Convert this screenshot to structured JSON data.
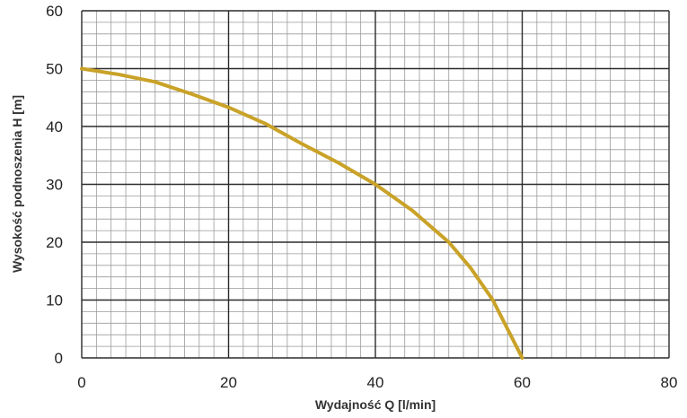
{
  "chart_data": {
    "type": "line",
    "title": "",
    "xlabel": "Wydajność Q [l/min]",
    "ylabel": "Wysokość podnoszenia H [m]",
    "xlim": [
      0,
      80
    ],
    "ylim": [
      0,
      60
    ],
    "x_ticks": [
      "0",
      "20",
      "40",
      "60",
      "80"
    ],
    "y_ticks": [
      "0",
      "10",
      "20",
      "30",
      "40",
      "50",
      "60"
    ],
    "grid": true,
    "legend": "none",
    "colors": {
      "line": "#C9A227",
      "major_grid": "#2b2b2b",
      "minor_grid": "#9a9a9a"
    },
    "series": [
      {
        "x": [
          0,
          5,
          10,
          15,
          20,
          25,
          30,
          35,
          40,
          45,
          50,
          53,
          56,
          58,
          60
        ],
        "values": [
          50,
          49,
          47.7,
          45.6,
          43.3,
          40.5,
          37,
          33.7,
          30,
          25.5,
          20,
          15.5,
          10,
          5,
          0
        ]
      }
    ]
  }
}
